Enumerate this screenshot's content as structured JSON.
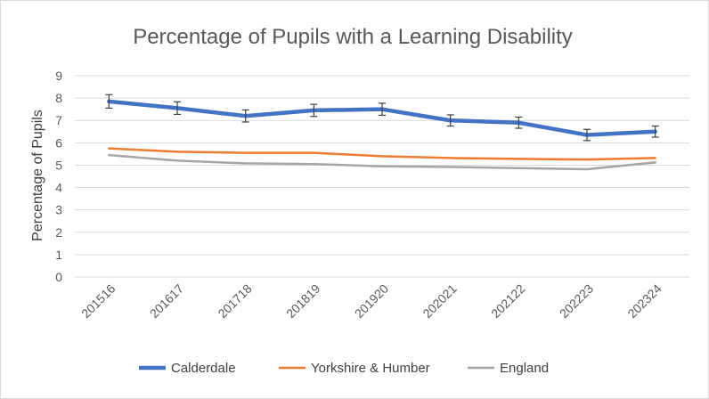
{
  "chart_data": {
    "type": "line",
    "title": "Percentage of Pupils with a Learning Disability",
    "xlabel": "",
    "ylabel": "Percentage of Pupils",
    "ylim": [
      0,
      9
    ],
    "yticks": [
      "0",
      "1",
      "2",
      "3",
      "4",
      "5",
      "6",
      "7",
      "8",
      "9"
    ],
    "grid": true,
    "legend_position": "bottom",
    "categories": [
      "201516",
      "201617",
      "201718",
      "201819",
      "201920",
      "202021",
      "202122",
      "202223",
      "202324"
    ],
    "series": [
      {
        "name": "Calderdale",
        "color": "#4472c4",
        "values": [
          7.85,
          7.55,
          7.2,
          7.45,
          7.5,
          7.0,
          6.9,
          6.35,
          6.5
        ],
        "error": [
          0.3,
          0.28,
          0.27,
          0.27,
          0.27,
          0.25,
          0.25,
          0.25,
          0.25
        ]
      },
      {
        "name": "Yorkshire & Humber",
        "color": "#ed7d31",
        "values": [
          5.75,
          5.6,
          5.55,
          5.55,
          5.4,
          5.32,
          5.28,
          5.25,
          5.32
        ]
      },
      {
        "name": "England",
        "color": "#a5a5a5",
        "values": [
          5.45,
          5.2,
          5.08,
          5.05,
          4.95,
          4.92,
          4.87,
          4.82,
          5.12
        ]
      }
    ]
  }
}
